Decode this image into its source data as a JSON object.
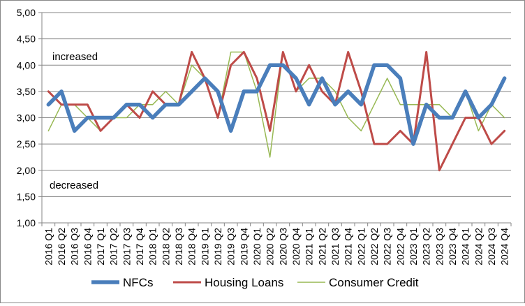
{
  "chart_data": {
    "type": "line",
    "categories": [
      "2016 Q1",
      "2016 Q2",
      "2016 Q3",
      "2016 Q4",
      "2017 Q1",
      "2017 Q2",
      "2017 Q3",
      "2017 Q4",
      "2018 Q1",
      "2018 Q2",
      "2018 Q3",
      "2018 Q4",
      "2019 Q1",
      "2019 Q2",
      "2019 Q3",
      "2019 Q4",
      "2020 Q1",
      "2020 Q2",
      "2020 Q3",
      "2020 Q4",
      "2021 Q1",
      "2021 Q2",
      "2021 Q3",
      "2021 Q4",
      "2022 Q1",
      "2022 Q2",
      "2022 Q3",
      "2022 Q4",
      "2023 Q1",
      "2023 Q2",
      "2023 Q3",
      "2023 Q4",
      "2024 Q1",
      "2024 Q2",
      "2024 Q3",
      "2024 Q4"
    ],
    "series": [
      {
        "name": "NFCs",
        "color": "#4a7ebb",
        "values": [
          3.25,
          3.5,
          2.75,
          3.0,
          3.0,
          3.0,
          3.25,
          3.25,
          3.0,
          3.25,
          3.25,
          3.5,
          3.75,
          3.5,
          2.75,
          3.5,
          3.5,
          4.0,
          4.0,
          3.75,
          3.25,
          3.75,
          3.25,
          3.5,
          3.25,
          4.0,
          4.0,
          3.75,
          2.5,
          3.25,
          3.0,
          3.0,
          3.5,
          3.0,
          3.25,
          3.75
        ]
      },
      {
        "name": "Housing Loans",
        "color": "#be4b48",
        "values": [
          3.5,
          3.25,
          3.25,
          3.25,
          2.75,
          3.0,
          3.25,
          3.0,
          3.5,
          3.25,
          3.25,
          4.25,
          3.75,
          3.0,
          4.0,
          4.25,
          3.75,
          2.75,
          4.25,
          3.5,
          4.0,
          3.5,
          3.25,
          4.25,
          3.5,
          2.5,
          2.5,
          2.75,
          2.5,
          4.25,
          2.0,
          2.5,
          3.0,
          3.0,
          2.5,
          2.75
        ]
      },
      {
        "name": "Consumer Credit",
        "color": "#98b954",
        "values": [
          2.75,
          3.25,
          3.25,
          3.0,
          2.75,
          3.0,
          3.0,
          3.25,
          3.25,
          3.5,
          3.25,
          4.0,
          3.75,
          3.0,
          4.25,
          4.25,
          3.5,
          2.25,
          4.25,
          3.5,
          3.75,
          3.75,
          3.5,
          3.0,
          2.75,
          3.25,
          3.75,
          3.25,
          3.25,
          3.25,
          3.25,
          3.0,
          3.5,
          2.75,
          3.25,
          3.0
        ]
      }
    ],
    "yticks": [
      "1,00",
      "1,50",
      "2,00",
      "2,50",
      "3,00",
      "3,50",
      "4,00",
      "4,50",
      "5,00"
    ],
    "ylim": [
      1.0,
      5.0
    ],
    "grid": true,
    "annotations": {
      "upper": "increased",
      "lower": "decreased"
    },
    "legend_position": "bottom"
  }
}
